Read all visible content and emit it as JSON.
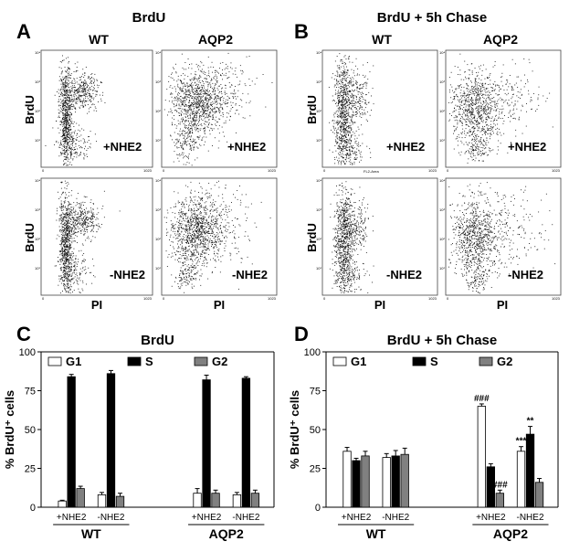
{
  "panels": {
    "A": {
      "letter": "A",
      "title": "BrdU",
      "cols": [
        "WT",
        "AQP2"
      ]
    },
    "B": {
      "letter": "B",
      "title": "BrdU + 5h Chase",
      "cols": [
        "WT",
        "AQP2"
      ]
    },
    "C": {
      "letter": "C"
    },
    "D": {
      "letter": "D"
    }
  },
  "flow": {
    "ylabel": "BrdU",
    "xlabel": "PI",
    "row_labels": [
      "+NHE2",
      "-NHE2"
    ],
    "x_max_tick": "1023",
    "x_zero_tick": "0",
    "y_ticks": [
      "10¹",
      "10²",
      "10³",
      "10⁴"
    ],
    "fl2_label": "FL2-Area"
  },
  "chart_data": [
    {
      "type": "bar",
      "title": "BrdU",
      "ylabel": "% BrdU⁺ cells",
      "ylim": [
        0,
        100
      ],
      "yticks": [
        0,
        25,
        50,
        75,
        100
      ],
      "legend": "top",
      "categories": [
        "+NHE2",
        "-NHE2",
        "+NHE2",
        "-NHE2"
      ],
      "groups": [
        "WT",
        "AQP2"
      ],
      "series": [
        {
          "name": "G1",
          "color": "#ffffff",
          "values": [
            4,
            8,
            9,
            8
          ],
          "errors": [
            0.5,
            1.5,
            3,
            1.5
          ]
        },
        {
          "name": "S",
          "color": "#000000",
          "values": [
            84,
            86,
            82,
            83
          ],
          "errors": [
            1.5,
            2,
            3,
            1
          ]
        },
        {
          "name": "G2",
          "color": "#808080",
          "values": [
            12,
            7,
            9,
            9
          ],
          "errors": [
            1.5,
            2,
            2,
            2
          ]
        }
      ],
      "annotations": []
    },
    {
      "type": "bar",
      "title": "BrdU + 5h Chase",
      "ylabel": "% BrdU⁺ cells",
      "ylim": [
        0,
        100
      ],
      "yticks": [
        0,
        25,
        50,
        75,
        100
      ],
      "legend": "top",
      "categories": [
        "+NHE2",
        "-NHE2",
        "+NHE2",
        "-NHE2"
      ],
      "groups": [
        "WT",
        "AQP2"
      ],
      "series": [
        {
          "name": "G1",
          "color": "#ffffff",
          "values": [
            36,
            32,
            65,
            36
          ],
          "errors": [
            2.5,
            2.5,
            1.5,
            3
          ]
        },
        {
          "name": "S",
          "color": "#000000",
          "values": [
            30,
            33,
            26,
            47
          ],
          "errors": [
            1.5,
            3.5,
            2,
            5
          ]
        },
        {
          "name": "G2",
          "color": "#808080",
          "values": [
            33,
            34,
            9,
            16
          ],
          "errors": [
            3,
            4,
            2,
            2.5
          ]
        }
      ],
      "annotations": [
        {
          "category": 2,
          "series": 0,
          "text": "###"
        },
        {
          "category": 2,
          "series": 2,
          "text": "###"
        },
        {
          "category": 3,
          "series": 0,
          "text": "***"
        },
        {
          "category": 3,
          "series": 1,
          "text": "**"
        }
      ]
    }
  ]
}
